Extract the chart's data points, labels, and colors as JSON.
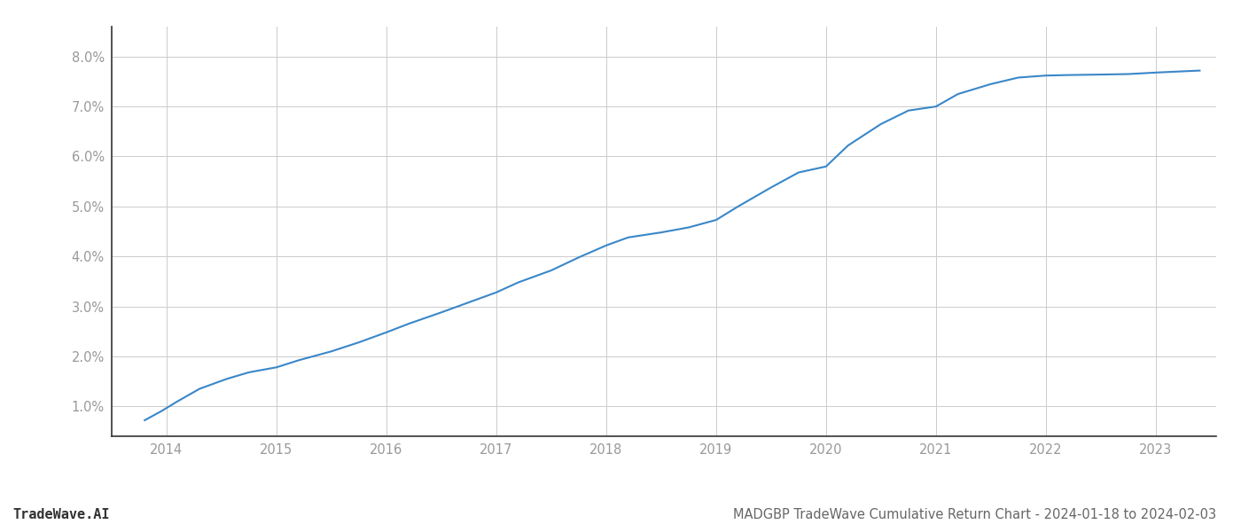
{
  "x_values": [
    2013.8,
    2013.95,
    2014.1,
    2014.3,
    2014.55,
    2014.75,
    2015.0,
    2015.2,
    2015.5,
    2015.75,
    2016.0,
    2016.2,
    2016.5,
    2016.75,
    2017.0,
    2017.2,
    2017.5,
    2017.75,
    2018.0,
    2018.2,
    2018.5,
    2018.75,
    2019.0,
    2019.2,
    2019.5,
    2019.75,
    2020.0,
    2020.2,
    2020.5,
    2020.75,
    2021.0,
    2021.2,
    2021.5,
    2021.75,
    2022.0,
    2022.2,
    2022.5,
    2022.75,
    2023.0,
    2023.2,
    2023.4
  ],
  "y_values": [
    0.0072,
    0.009,
    0.011,
    0.0135,
    0.0155,
    0.0168,
    0.0178,
    0.0192,
    0.021,
    0.0228,
    0.0248,
    0.0265,
    0.0288,
    0.0308,
    0.0328,
    0.0348,
    0.0372,
    0.0398,
    0.0422,
    0.0438,
    0.0448,
    0.0458,
    0.0473,
    0.05,
    0.0538,
    0.0568,
    0.058,
    0.0622,
    0.0665,
    0.0692,
    0.07,
    0.0725,
    0.0745,
    0.0758,
    0.0762,
    0.0763,
    0.0764,
    0.0765,
    0.0768,
    0.077,
    0.0772
  ],
  "line_color": "#3a87c8",
  "line_width": 1.5,
  "background_color": "#ffffff",
  "grid_color": "#cccccc",
  "title": "MADGBP TradeWave Cumulative Return Chart - 2024-01-18 to 2024-02-03",
  "title_fontsize": 10.5,
  "watermark": "TradeWave.AI",
  "watermark_fontsize": 11,
  "xlim": [
    2013.5,
    2023.55
  ],
  "ylim": [
    0.004,
    0.086
  ],
  "xticks": [
    2014,
    2015,
    2016,
    2017,
    2018,
    2019,
    2020,
    2021,
    2022,
    2023
  ],
  "yticks": [
    0.01,
    0.02,
    0.03,
    0.04,
    0.05,
    0.06,
    0.07,
    0.08
  ],
  "ytick_labels": [
    "1.0%",
    "2.0%",
    "3.0%",
    "4.0%",
    "5.0%",
    "6.0%",
    "7.0%",
    "8.0%"
  ],
  "tick_fontsize": 10.5,
  "tick_color": "#999999",
  "spine_bottom_color": "#333333",
  "spine_left_color": "#333333"
}
